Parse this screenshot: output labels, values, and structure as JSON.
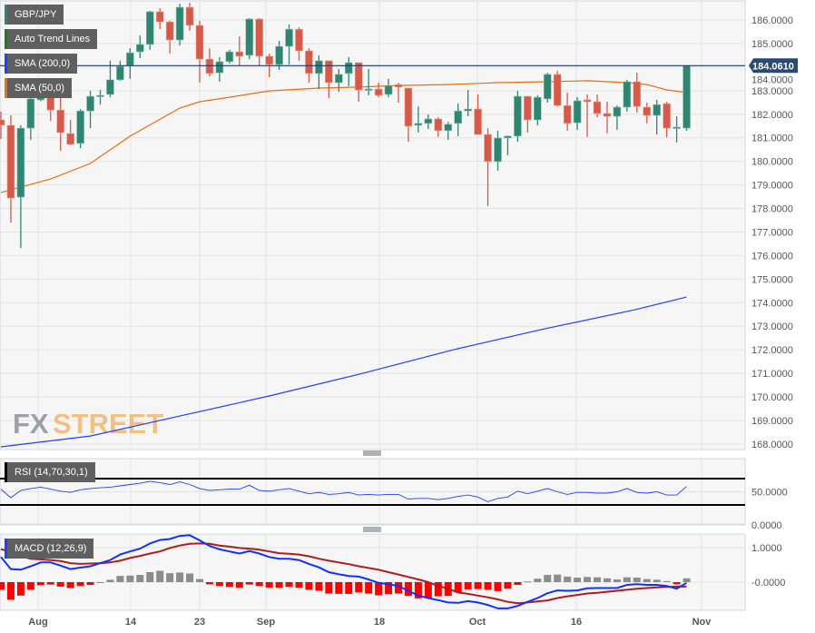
{
  "instrument": "GBP/JPY",
  "legends": {
    "main": {
      "label": "GBP/JPY",
      "color": "#2e8572"
    },
    "trend": {
      "label": "Auto Trend Lines",
      "color": "#1a7f1a"
    },
    "sma200": {
      "label": "SMA (200,0)",
      "color": "#1f3fff"
    },
    "sma50": {
      "label": "SMA (50,0)",
      "color": "#e8700a"
    },
    "rsi": {
      "label": "RSI (14,70,30,1)",
      "color": "#000000"
    },
    "macd": {
      "label": "MACD (12,26,9)",
      "color": "#1f3fff"
    }
  },
  "watermark": {
    "part1": "FX",
    "part2": "STREET"
  },
  "last_price": "184.0610",
  "colors": {
    "up": "#2e8572",
    "down": "#d65a4a",
    "sma200": "#1f3fff",
    "sma50": "#e8700a",
    "last_price_line": "#1f3a66",
    "rsi_line": "#1f3fff",
    "macd_line": "#1030ff",
    "signal_line": "#b01c1c",
    "hist_pos": "#8c8c8c",
    "hist_neg": "#ff0000"
  },
  "price_axis": [
    "186.0000",
    "185.0000",
    "184.0000",
    "183.0000",
    "182.0000",
    "181.0000",
    "180.0000",
    "179.0000",
    "178.0000",
    "177.0000",
    "176.0000",
    "175.0000",
    "174.0000",
    "173.0000",
    "172.0000",
    "171.0000",
    "170.0000",
    "169.0000",
    "168.0000"
  ],
  "rsi_axis": [
    "50.0000",
    "0.0000"
  ],
  "macd_axis": [
    "1.0000",
    "-0.0000"
  ],
  "x_axis": [
    "Aug",
    "14",
    "23",
    "Sep",
    "18",
    "Oct",
    "16",
    "Nov"
  ],
  "chart_data": {
    "type": "candlestick",
    "ylim": [
      168,
      186.6
    ],
    "ohlc": [
      [
        181.76,
        182.11,
        180.95,
        181.53
      ],
      [
        181.53,
        181.95,
        177.4,
        178.44
      ],
      [
        178.48,
        181.53,
        176.32,
        181.41
      ],
      [
        181.41,
        182.99,
        180.91,
        182.65
      ],
      [
        182.61,
        183.1,
        182.55,
        182.99
      ],
      [
        182.92,
        183.11,
        181.72,
        182.18
      ],
      [
        182.18,
        182.76,
        180.45,
        181.22
      ],
      [
        181.18,
        181.76,
        180.68,
        180.72
      ],
      [
        180.76,
        182.22,
        180.56,
        182.14
      ],
      [
        182.14,
        182.99,
        181.41,
        182.76
      ],
      [
        182.78,
        183.03,
        182.41,
        182.8
      ],
      [
        182.84,
        184.27,
        182.72,
        183.46
      ],
      [
        183.46,
        184.27,
        183.42,
        184.03
      ],
      [
        184.07,
        184.8,
        183.5,
        184.61
      ],
      [
        184.65,
        185.34,
        184.38,
        184.96
      ],
      [
        184.96,
        186.39,
        184.73,
        186.35
      ],
      [
        186.35,
        186.5,
        185.61,
        185.92
      ],
      [
        185.92,
        185.96,
        184.57,
        185.15
      ],
      [
        185.15,
        186.69,
        184.92,
        186.54
      ],
      [
        186.54,
        186.73,
        185.54,
        185.77
      ],
      [
        185.77,
        185.96,
        183.34,
        184.34
      ],
      [
        184.34,
        184.8,
        183.61,
        183.73
      ],
      [
        183.76,
        184.42,
        183.38,
        184.23
      ],
      [
        184.23,
        184.73,
        184.15,
        184.65
      ],
      [
        184.65,
        185.31,
        184.07,
        184.46
      ],
      [
        184.5,
        186.08,
        184.34,
        186.04
      ],
      [
        186.04,
        186.08,
        184.07,
        184.46
      ],
      [
        184.46,
        184.57,
        183.57,
        184.11
      ],
      [
        184.11,
        185.11,
        183.88,
        184.88
      ],
      [
        184.88,
        185.81,
        184.11,
        185.61
      ],
      [
        185.61,
        185.69,
        184.27,
        184.69
      ],
      [
        184.69,
        184.8,
        183.34,
        183.73
      ],
      [
        183.73,
        184.5,
        183.07,
        184.27
      ],
      [
        184.27,
        184.27,
        182.68,
        183.34
      ],
      [
        183.34,
        183.92,
        182.95,
        183.69
      ],
      [
        183.73,
        184.42,
        183.19,
        184.19
      ],
      [
        184.19,
        184.19,
        182.53,
        183.03
      ],
      [
        183.03,
        183.92,
        182.8,
        183.07
      ],
      [
        183.07,
        183.34,
        182.72,
        182.8
      ],
      [
        182.84,
        183.5,
        182.72,
        183.22
      ],
      [
        183.26,
        183.34,
        182.49,
        183.15
      ],
      [
        183.11,
        183.11,
        180.83,
        181.49
      ],
      [
        181.53,
        182.33,
        181.22,
        181.61
      ],
      [
        181.61,
        181.99,
        181.37,
        181.8
      ],
      [
        181.8,
        181.87,
        181.03,
        181.3
      ],
      [
        181.3,
        181.68,
        180.91,
        181.57
      ],
      [
        181.61,
        182.45,
        181.07,
        182.14
      ],
      [
        182.14,
        183.03,
        181.91,
        182.22
      ],
      [
        182.22,
        182.84,
        181.14,
        181.14
      ],
      [
        181.14,
        181.41,
        178.1,
        179.99
      ],
      [
        179.99,
        181.3,
        179.6,
        180.99
      ],
      [
        180.99,
        181.1,
        180.26,
        181.07
      ],
      [
        181.07,
        182.99,
        180.83,
        182.76
      ],
      [
        182.76,
        182.76,
        181.22,
        181.76
      ],
      [
        181.76,
        182.8,
        181.53,
        182.72
      ],
      [
        182.65,
        183.76,
        182.49,
        183.69
      ],
      [
        183.69,
        183.84,
        182.33,
        182.37
      ],
      [
        182.37,
        182.92,
        181.3,
        181.61
      ],
      [
        181.64,
        182.72,
        181.34,
        182.57
      ],
      [
        182.61,
        182.84,
        181.03,
        182.53
      ],
      [
        182.53,
        182.84,
        181.87,
        182.03
      ],
      [
        182.03,
        182.53,
        181.18,
        181.91
      ],
      [
        181.91,
        182.37,
        181.34,
        182.3
      ],
      [
        182.3,
        183.46,
        182.11,
        183.38
      ],
      [
        183.38,
        183.76,
        182.07,
        182.33
      ],
      [
        182.3,
        182.49,
        181.61,
        181.95
      ],
      [
        181.95,
        182.61,
        181.14,
        182.41
      ],
      [
        182.45,
        182.53,
        181.03,
        181.41
      ],
      [
        181.41,
        181.91,
        180.8,
        181.45
      ],
      [
        181.41,
        184.07,
        181.3,
        184.06
      ]
    ],
    "sma50": [
      [
        0,
        178.68
      ],
      [
        5,
        179.25
      ],
      [
        9,
        179.91
      ],
      [
        13,
        181.07
      ],
      [
        18,
        182.26
      ],
      [
        20,
        182.53
      ],
      [
        23,
        182.72
      ],
      [
        27,
        182.99
      ],
      [
        32,
        183.11
      ],
      [
        36,
        183.15
      ],
      [
        40,
        183.22
      ],
      [
        45,
        183.26
      ],
      [
        50,
        183.34
      ],
      [
        55,
        183.38
      ],
      [
        59,
        183.42
      ],
      [
        63,
        183.34
      ],
      [
        65,
        183.26
      ],
      [
        67,
        183.03
      ],
      [
        69,
        182.92
      ]
    ],
    "sma200": [
      [
        0,
        167.88
      ],
      [
        9,
        168.34
      ],
      [
        18,
        169.19
      ],
      [
        27,
        170.04
      ],
      [
        36.4,
        171.0
      ],
      [
        45.6,
        172.01
      ],
      [
        54.7,
        172.89
      ],
      [
        63.8,
        173.7
      ],
      [
        69,
        174.24
      ]
    ],
    "rsi": {
      "levels": [
        70,
        30
      ],
      "ylim": [
        0,
        100
      ],
      "values": [
        54,
        41,
        52,
        55,
        57,
        54,
        51,
        49,
        53,
        55,
        56,
        57,
        59,
        61,
        63,
        66,
        64,
        61,
        65,
        61,
        55,
        52,
        53,
        54,
        54,
        60,
        52,
        51,
        53,
        55,
        51,
        47,
        49,
        46,
        47,
        49,
        45,
        46,
        45,
        46,
        46,
        39,
        40,
        40,
        38,
        40,
        43,
        45,
        42,
        35,
        40,
        42,
        51,
        47,
        51,
        55,
        50,
        46,
        49,
        49,
        48,
        48,
        50,
        55,
        49,
        48,
        50,
        45,
        45,
        58
      ]
    },
    "macd": {
      "macd": [
        0.73,
        0.38,
        0.36,
        0.46,
        0.57,
        0.57,
        0.48,
        0.38,
        0.42,
        0.46,
        0.55,
        0.64,
        0.8,
        0.89,
        0.97,
        1.12,
        1.22,
        1.25,
        1.34,
        1.36,
        1.21,
        1.05,
        0.95,
        0.89,
        0.83,
        0.9,
        0.83,
        0.73,
        0.68,
        0.68,
        0.64,
        0.53,
        0.43,
        0.29,
        0.23,
        0.18,
        0.16,
        0.08,
        -0.02,
        -0.06,
        -0.11,
        -0.25,
        -0.39,
        -0.46,
        -0.52,
        -0.59,
        -0.6,
        -0.55,
        -0.59,
        -0.66,
        -0.76,
        -0.76,
        -0.69,
        -0.57,
        -0.46,
        -0.32,
        -0.24,
        -0.25,
        -0.24,
        -0.18,
        -0.17,
        -0.17,
        -0.17,
        -0.08,
        -0.06,
        -0.08,
        -0.08,
        -0.11,
        -0.19,
        -0.02
      ],
      "signal": [
        0.95,
        0.89,
        0.75,
        0.68,
        0.66,
        0.64,
        0.61,
        0.55,
        0.53,
        0.54,
        0.55,
        0.57,
        0.62,
        0.7,
        0.76,
        0.83,
        0.89,
        0.99,
        1.06,
        1.11,
        1.12,
        1.11,
        1.06,
        1.03,
        0.99,
        0.97,
        0.94,
        0.89,
        0.84,
        0.82,
        0.8,
        0.75,
        0.68,
        0.62,
        0.57,
        0.52,
        0.46,
        0.41,
        0.36,
        0.29,
        0.22,
        0.15,
        0.08,
        0.0,
        -0.11,
        -0.19,
        -0.3,
        -0.34,
        -0.39,
        -0.44,
        -0.5,
        -0.57,
        -0.61,
        -0.59,
        -0.56,
        -0.53,
        -0.46,
        -0.41,
        -0.37,
        -0.33,
        -0.31,
        -0.28,
        -0.25,
        -0.22,
        -0.19,
        -0.17,
        -0.15,
        -0.14,
        -0.13,
        -0.13
      ],
      "histogram": [
        -0.22,
        -0.51,
        -0.39,
        -0.22,
        -0.09,
        -0.07,
        -0.13,
        -0.17,
        -0.11,
        -0.08,
        0.0,
        0.07,
        0.18,
        0.19,
        0.21,
        0.29,
        0.33,
        0.26,
        0.28,
        0.25,
        0.09,
        -0.06,
        -0.11,
        -0.14,
        -0.16,
        -0.07,
        -0.11,
        -0.16,
        -0.16,
        -0.14,
        -0.16,
        -0.22,
        -0.25,
        -0.33,
        -0.34,
        -0.34,
        -0.3,
        -0.33,
        -0.38,
        -0.35,
        -0.33,
        -0.4,
        -0.47,
        -0.46,
        -0.41,
        -0.4,
        -0.3,
        -0.21,
        -0.2,
        -0.22,
        -0.26,
        -0.19,
        -0.08,
        0.02,
        0.1,
        0.21,
        0.22,
        0.16,
        0.13,
        0.15,
        0.14,
        0.11,
        0.08,
        0.14,
        0.13,
        0.09,
        0.07,
        0.03,
        -0.06,
        0.11
      ]
    }
  }
}
